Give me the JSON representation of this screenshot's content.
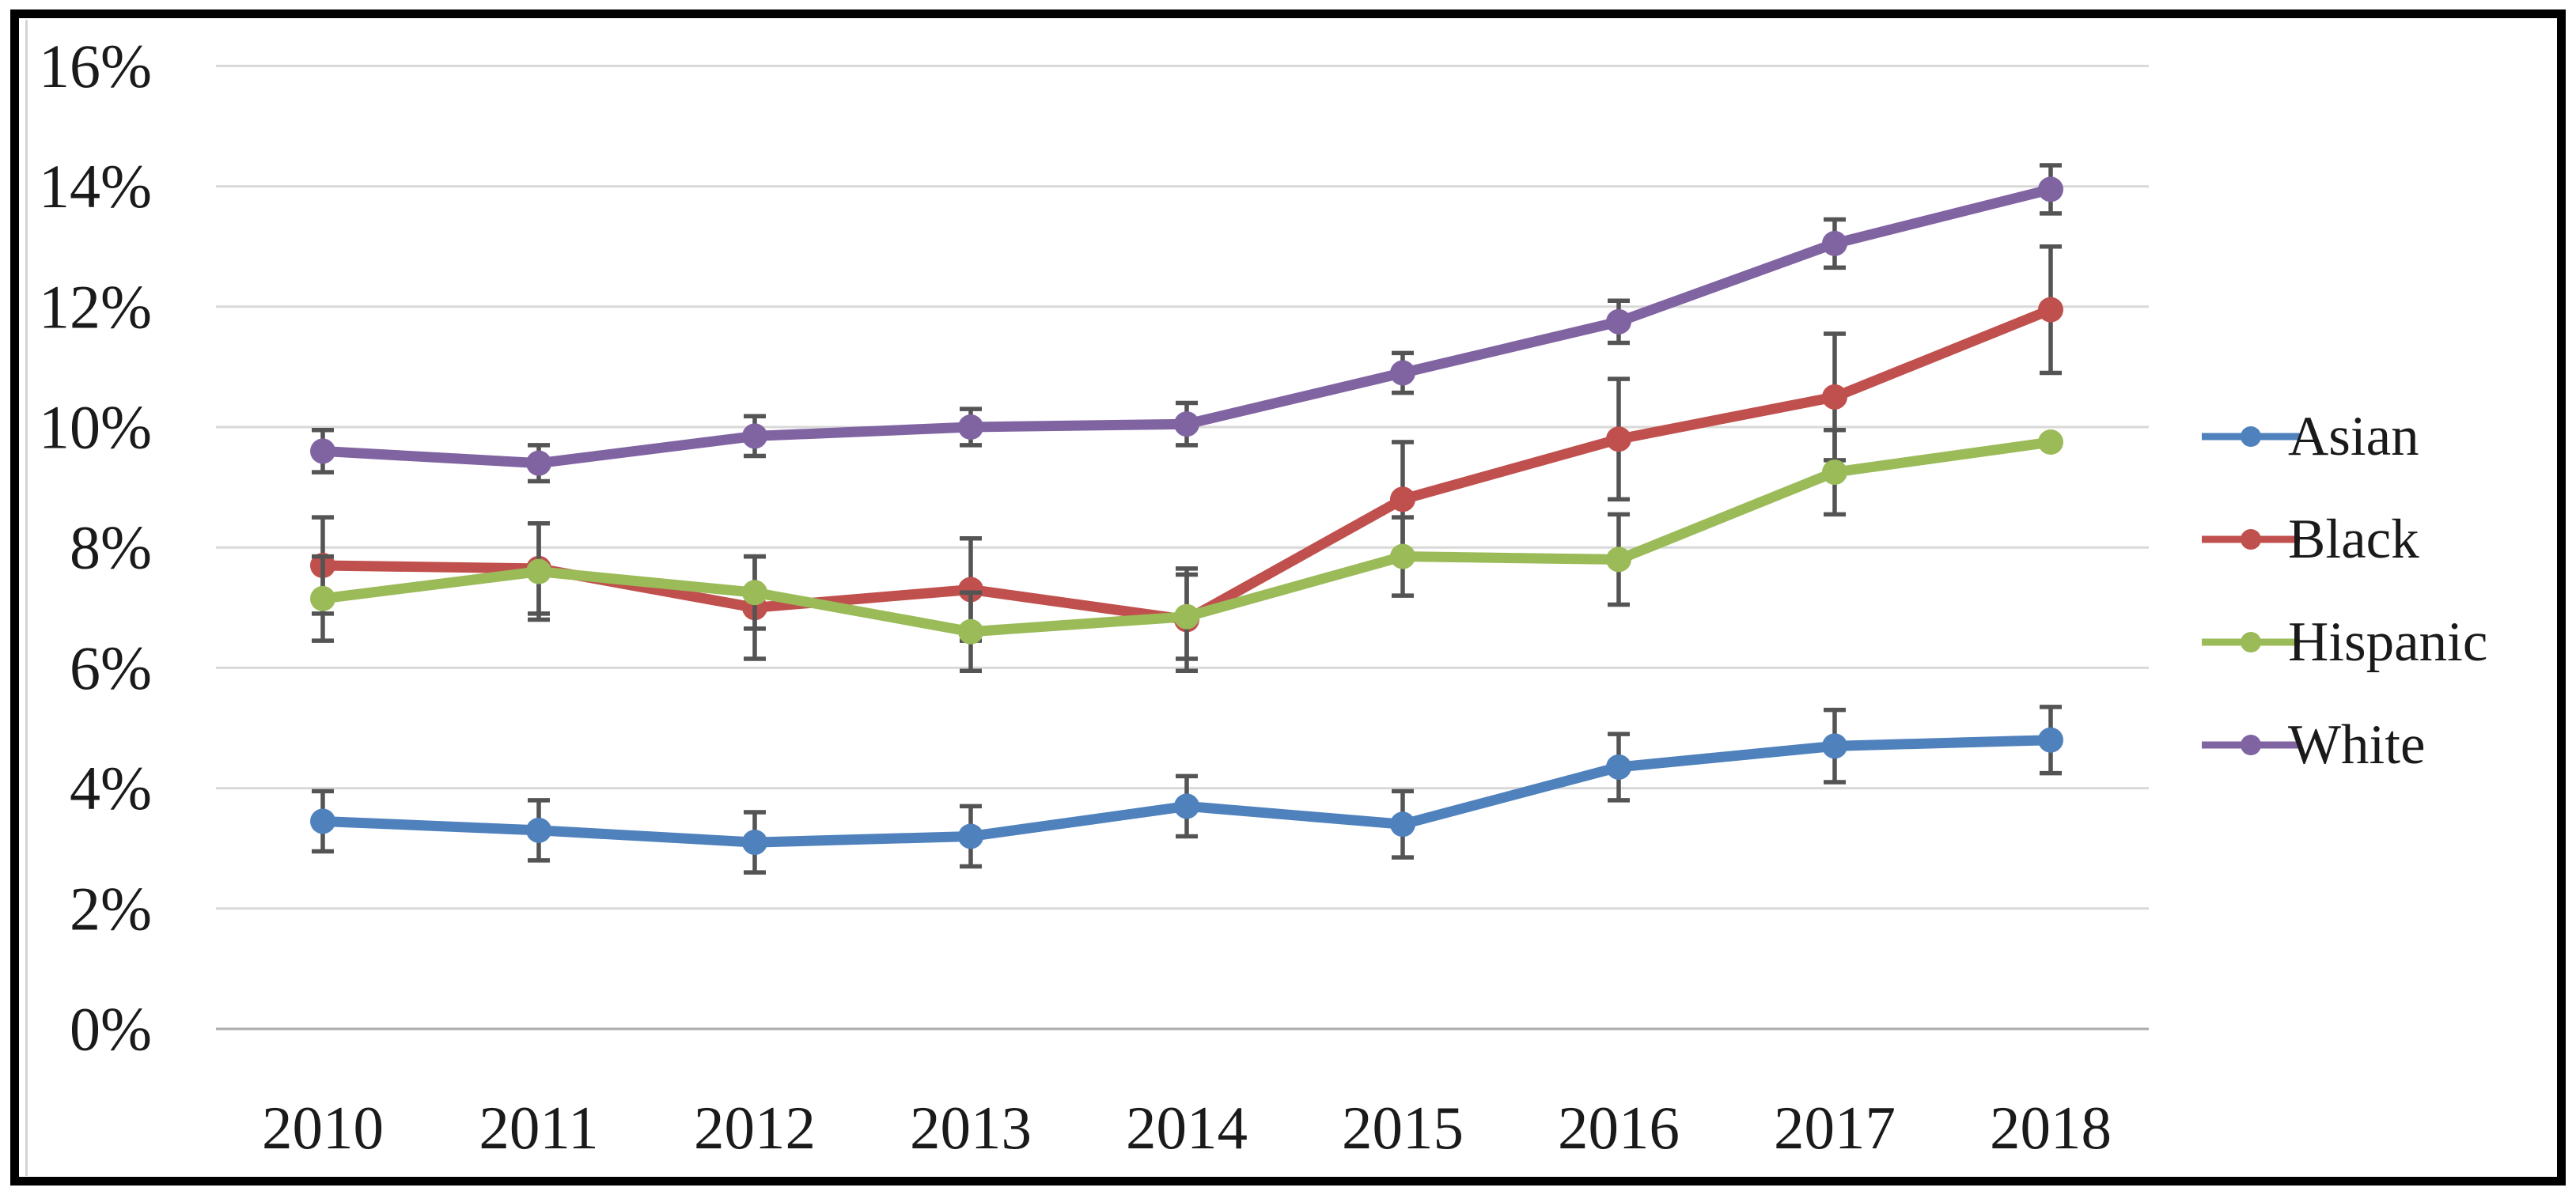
{
  "figure": {
    "background": "#ffffff",
    "border_color": "#000000",
    "gridline_color": "#d9d9d9",
    "zero_line_color": "#ababab",
    "error_bar_color": "#545454",
    "text_color": "#1a1a1a"
  },
  "chart_data": {
    "type": "line",
    "title": "",
    "xlabel": "",
    "ylabel": "",
    "grid": true,
    "legend_position": "right",
    "x_categories": [
      "2010",
      "2011",
      "2012",
      "2013",
      "2014",
      "2015",
      "2016",
      "2017",
      "2018"
    ],
    "y_axis": {
      "min": 0,
      "max": 16,
      "step": 2,
      "tick_labels": [
        "0%",
        "2%",
        "4%",
        "6%",
        "8%",
        "10%",
        "12%",
        "14%",
        "16%"
      ]
    },
    "ylim": [
      0,
      16
    ],
    "series": [
      {
        "name": "Asian",
        "color": "#4F81BD",
        "values": [
          3.45,
          3.3,
          3.1,
          3.2,
          3.7,
          3.4,
          4.35,
          4.7,
          4.8
        ],
        "error": [
          0.5,
          0.5,
          0.5,
          0.5,
          0.5,
          0.55,
          0.55,
          0.6,
          0.55
        ]
      },
      {
        "name": "Black",
        "color": "#C0504D",
        "values": [
          7.7,
          7.65,
          7.0,
          7.3,
          6.8,
          8.8,
          9.8,
          10.5,
          11.95
        ],
        "error": [
          0.8,
          0.75,
          0.85,
          0.85,
          0.85,
          0.95,
          1.0,
          1.05,
          1.05
        ]
      },
      {
        "name": "Hispanic",
        "color": "#9BBB59",
        "values": [
          7.15,
          7.6,
          7.25,
          6.6,
          6.85,
          7.85,
          7.8,
          9.25,
          9.75
        ],
        "error": [
          0.7,
          0.8,
          0.6,
          0.65,
          0.7,
          0.65,
          0.75,
          0.7,
          0
        ]
      },
      {
        "name": "White",
        "color": "#8064A2",
        "values": [
          9.6,
          9.4,
          9.85,
          10.0,
          10.05,
          10.9,
          11.75,
          13.05,
          13.95
        ],
        "error": [
          0.35,
          0.3,
          0.33,
          0.3,
          0.35,
          0.33,
          0.35,
          0.4,
          0.4
        ]
      }
    ]
  }
}
